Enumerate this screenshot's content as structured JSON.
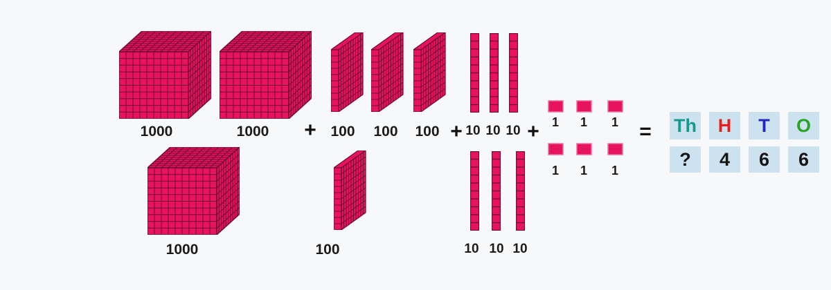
{
  "colors": {
    "background": "#f7f8fa",
    "block_fill": "#e8135e",
    "block_line": "#6e0c30",
    "unit_border": "#ef6f9d",
    "table_cell_bg": "#cde2ef",
    "label_text": "#1a1a1a"
  },
  "blocks": {
    "thousand": {
      "label": "1000",
      "value": 1000,
      "count": 3
    },
    "hundred": {
      "label": "100",
      "value": 100,
      "count": 4
    },
    "ten": {
      "label": "10",
      "value": 10,
      "count": 6
    },
    "one": {
      "label": "1",
      "value": 1,
      "count": 6
    }
  },
  "operators": {
    "plus": "+",
    "equals": "="
  },
  "place_value_table": {
    "headers": [
      {
        "label": "Th",
        "color": "#149a8d"
      },
      {
        "label": "H",
        "color": "#ee1b1b"
      },
      {
        "label": "T",
        "color": "#2a24bb"
      },
      {
        "label": "O",
        "color": "#28a428"
      }
    ],
    "values": [
      "?",
      "4",
      "6",
      "6"
    ]
  }
}
